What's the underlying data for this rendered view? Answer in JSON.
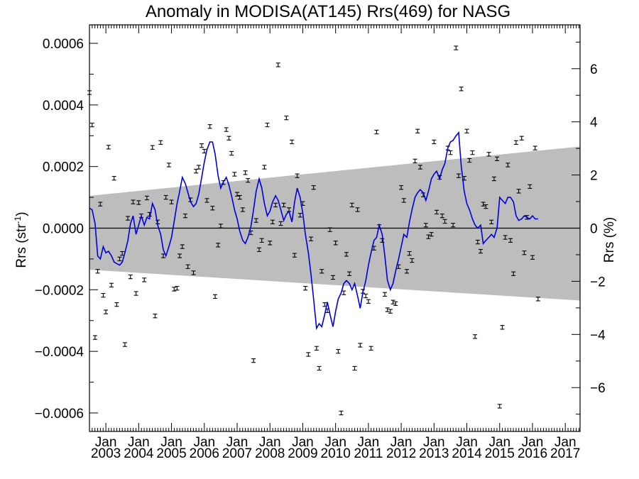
{
  "chart_data": {
    "type": "line",
    "title": "Anomaly in MODISA(AT145) Rrs(469) for NASG",
    "ylabel_left_main": "Rrs (str",
    "ylabel_left_sup": "-1",
    "ylabel_left_end": ")",
    "ylabel_right": "Rrs (%)",
    "xlim": [
      2002.5,
      2017.45
    ],
    "ylim_left": [
      -0.00066,
      0.00066
    ],
    "ylim_right": [
      -7.65,
      7.65
    ],
    "x_ticks": [
      {
        "x": 2003.0,
        "month": "Jan",
        "year": "2003"
      },
      {
        "x": 2004.0,
        "month": "Jan",
        "year": "2004"
      },
      {
        "x": 2005.0,
        "month": "Jan",
        "year": "2005"
      },
      {
        "x": 2006.0,
        "month": "Jan",
        "year": "2006"
      },
      {
        "x": 2007.0,
        "month": "Jan",
        "year": "2007"
      },
      {
        "x": 2008.0,
        "month": "Jan",
        "year": "2008"
      },
      {
        "x": 2009.0,
        "month": "Jan",
        "year": "2009"
      },
      {
        "x": 2010.0,
        "month": "Jan",
        "year": "2010"
      },
      {
        "x": 2011.0,
        "month": "Jan",
        "year": "2011"
      },
      {
        "x": 2012.0,
        "month": "Jan",
        "year": "2012"
      },
      {
        "x": 2013.0,
        "month": "Jan",
        "year": "2013"
      },
      {
        "x": 2014.0,
        "month": "Jan",
        "year": "2014"
      },
      {
        "x": 2015.0,
        "month": "Jan",
        "year": "2015"
      },
      {
        "x": 2016.0,
        "month": "Jan",
        "year": "2016"
      },
      {
        "x": 2017.0,
        "month": "Jan",
        "year": "2017"
      }
    ],
    "y_ticks_left": [
      {
        "value": 0.0006,
        "label": "0.0006"
      },
      {
        "value": 0.0004,
        "label": "0.0004"
      },
      {
        "value": 0.0002,
        "label": "0.0002"
      },
      {
        "value": 0.0,
        "label": "0.0000"
      },
      {
        "value": -0.0002,
        "label": "−0.0002"
      },
      {
        "value": -0.0004,
        "label": "−0.0004"
      },
      {
        "value": -0.0006,
        "label": "−0.0006"
      }
    ],
    "y_ticks_right": [
      {
        "value": 6,
        "label": "6"
      },
      {
        "value": 4,
        "label": "4"
      },
      {
        "value": 2,
        "label": "2"
      },
      {
        "value": 0,
        "label": "0"
      },
      {
        "value": -2,
        "label": "−2"
      },
      {
        "value": -4,
        "label": "−4"
      },
      {
        "value": -6,
        "label": "−6"
      }
    ],
    "band": {
      "x": [
        2002.5,
        2017.45
      ],
      "upper": [
        0.000105,
        0.000265
      ],
      "lower": [
        -0.000135,
        -0.000235
      ]
    },
    "zero_line": 0,
    "points": [
      [
        2002.5,
        0.00044
      ],
      [
        2002.58,
        0.000335
      ],
      [
        2002.67,
        -0.000355
      ],
      [
        2002.75,
        -0.00014
      ],
      [
        2002.83,
        7.8e-05
      ],
      [
        2002.92,
        -0.000218
      ],
      [
        2003.0,
        -0.000272
      ],
      [
        2003.08,
        0.000263
      ],
      [
        2003.17,
        -0.000185
      ],
      [
        2003.25,
        0.000162
      ],
      [
        2003.33,
        -0.000248
      ],
      [
        2003.42,
        -0.0001
      ],
      [
        2003.5,
        -8.2e-05
      ],
      [
        2003.58,
        -0.000378
      ],
      [
        2003.67,
        3.2e-05
      ],
      [
        2003.75,
        -0.000158
      ],
      [
        2003.83,
        8.5e-05
      ],
      [
        2003.92,
        -0.000212
      ],
      [
        2004.0,
        8.3e-05
      ],
      [
        2004.08,
        4e-05
      ],
      [
        2004.17,
        -0.000168
      ],
      [
        2004.25,
        9.8e-05
      ],
      [
        2004.33,
        4.5e-05
      ],
      [
        2004.42,
        0.000262
      ],
      [
        2004.5,
        -0.000285
      ],
      [
        2004.58,
        2e-05
      ],
      [
        2004.67,
        0.000278
      ],
      [
        2004.75,
        -9e-05
      ],
      [
        2004.83,
        0.0001
      ],
      [
        2004.92,
        0.000205
      ],
      [
        2005.0,
        8.5e-05
      ],
      [
        2005.08,
        -0.000198
      ],
      [
        2005.17,
        -0.000195
      ],
      [
        2005.25,
        -9e-05
      ],
      [
        2005.33,
        -6e-05
      ],
      [
        2005.42,
        4e-05
      ],
      [
        2005.5,
        -0.000125
      ],
      [
        2005.58,
        9.2e-05
      ],
      [
        2005.67,
        -0.000145
      ],
      [
        2005.75,
        0.000185
      ],
      [
        2005.83,
        0.000198
      ],
      [
        2005.92,
        0.000268
      ],
      [
        2006.0,
        0.00025
      ],
      [
        2006.08,
        9e-05
      ],
      [
        2006.17,
        0.00033
      ],
      [
        2006.25,
        6.5e-05
      ],
      [
        2006.33,
        -0.000222
      ],
      [
        2006.42,
        -5.5e-05
      ],
      [
        2006.5,
        7e-06
      ],
      [
        2006.58,
        0.000148
      ],
      [
        2006.67,
        0.00032
      ],
      [
        2006.75,
        0.000292
      ],
      [
        2006.83,
        0.000243
      ],
      [
        2006.92,
        0.000175
      ],
      [
        2007.0,
        0.00011
      ],
      [
        2007.08,
        0.0001
      ],
      [
        2007.17,
        6e-05
      ],
      [
        2007.25,
        0.00018
      ],
      [
        2007.33,
        0.000155
      ],
      [
        2007.42,
        -1.5e-05
      ],
      [
        2007.5,
        -0.00043
      ],
      [
        2007.58,
        2.5e-05
      ],
      [
        2007.67,
        -7e-05
      ],
      [
        2007.75,
        -4e-05
      ],
      [
        2007.83,
        0.000198
      ],
      [
        2007.92,
        0.000335
      ],
      [
        2008.0,
        -4.8e-05
      ],
      [
        2008.08,
        2e-05
      ],
      [
        2008.17,
        7.5e-05
      ],
      [
        2008.25,
        0.00053
      ],
      [
        2008.33,
        1.5e-05
      ],
      [
        2008.42,
        7.5e-05
      ],
      [
        2008.5,
        0.000358
      ],
      [
        2008.58,
        6e-05
      ],
      [
        2008.67,
        0.00028
      ],
      [
        2008.75,
        -8.8e-05
      ],
      [
        2008.83,
        0.00017
      ],
      [
        2008.92,
        4.2e-05
      ],
      [
        2009.0,
        8e-05
      ],
      [
        2009.08,
        -0.000195
      ],
      [
        2009.17,
        -0.00041
      ],
      [
        2009.25,
        -3.5e-05
      ],
      [
        2009.33,
        0.000132
      ],
      [
        2009.42,
        -0.00039
      ],
      [
        2009.5,
        -0.000455
      ],
      [
        2009.58,
        -0.00014
      ],
      [
        2009.67,
        -0.000248
      ],
      [
        2009.75,
        -0.000268
      ],
      [
        2009.83,
        -5e-06
      ],
      [
        2009.92,
        -0.00016
      ],
      [
        2010.0,
        -4.8e-05
      ],
      [
        2010.08,
        -0.0004
      ],
      [
        2010.17,
        -0.0006
      ],
      [
        2010.25,
        -0.00021
      ],
      [
        2010.33,
        -8.5e-05
      ],
      [
        2010.42,
        -0.000148
      ],
      [
        2010.5,
        7.5e-05
      ],
      [
        2010.58,
        -0.000455
      ],
      [
        2010.67,
        6e-05
      ],
      [
        2010.75,
        -0.00038
      ],
      [
        2010.83,
        -0.000205
      ],
      [
        2010.92,
        -0.00022
      ],
      [
        2011.0,
        -0.000238
      ],
      [
        2011.08,
        -0.00039
      ],
      [
        2011.17,
        -6.5e-05
      ],
      [
        2011.25,
        0.000312
      ],
      [
        2011.33,
        5e-06
      ],
      [
        2011.42,
        -4e-05
      ],
      [
        2011.5,
        -0.000215
      ],
      [
        2011.58,
        -0.000265
      ],
      [
        2011.67,
        -0.00027
      ],
      [
        2011.75,
        -0.00024
      ],
      [
        2011.83,
        -0.000245
      ],
      [
        2011.92,
        -0.000125
      ],
      [
        2012.0,
        0.000132
      ],
      [
        2012.08,
        9e-05
      ],
      [
        2012.17,
        -0.00014
      ],
      [
        2012.25,
        -8.2e-05
      ],
      [
        2012.33,
        -0.000105
      ],
      [
        2012.42,
        0.000218
      ],
      [
        2012.5,
        0.000315
      ],
      [
        2012.58,
        0.000198
      ],
      [
        2012.67,
        0.000108
      ],
      [
        2012.75,
        1e-05
      ],
      [
        2012.83,
        -2.8e-05
      ],
      [
        2012.92,
        -2e-05
      ],
      [
        2013.0,
        0.00028
      ],
      [
        2013.08,
        5.2e-05
      ],
      [
        2013.17,
        0.000165
      ],
      [
        2013.25,
        4e-05
      ],
      [
        2013.33,
        2.2e-05
      ],
      [
        2013.42,
        0.00026
      ],
      [
        2013.5,
        0.000245
      ],
      [
        2013.58,
        1e-05
      ],
      [
        2013.67,
        0.000585
      ],
      [
        2013.75,
        0.00017
      ],
      [
        2013.83,
        0.000452
      ],
      [
        2013.92,
        0.000162
      ],
      [
        2014.0,
        0.000315
      ],
      [
        2014.08,
        0.00022
      ],
      [
        2014.17,
        0.000245
      ],
      [
        2014.25,
        -0.000352
      ],
      [
        2014.33,
        -4.5e-05
      ],
      [
        2014.42,
        -7.5e-05
      ],
      [
        2014.5,
        7.8e-05
      ],
      [
        2014.58,
        7e-05
      ],
      [
        2014.67,
        0.00024
      ],
      [
        2014.75,
        2e-05
      ],
      [
        2014.83,
        0.00016
      ],
      [
        2014.92,
        0.000225
      ],
      [
        2015.0,
        -0.000578
      ],
      [
        2015.08,
        -0.000322
      ],
      [
        2015.17,
        -3e-05
      ],
      [
        2015.25,
        0.000205
      ],
      [
        2015.33,
        -4e-05
      ],
      [
        2015.42,
        -0.000148
      ],
      [
        2015.5,
        0.000278
      ],
      [
        2015.58,
        0.00012
      ],
      [
        2015.67,
        0.000292
      ],
      [
        2015.75,
        -8e-05
      ],
      [
        2015.83,
        3.5e-05
      ],
      [
        2015.92,
        0.000135
      ],
      [
        2016.0,
        -9.5e-05
      ],
      [
        2016.08,
        0.00026
      ],
      [
        2016.17,
        -0.00023
      ]
    ],
    "line": [
      [
        2002.5,
        6.5e-05
      ],
      [
        2002.58,
        6e-05
      ],
      [
        2002.67,
        1.5e-05
      ],
      [
        2002.75,
        -9e-05
      ],
      [
        2002.83,
        -0.0001
      ],
      [
        2002.92,
        -6e-05
      ],
      [
        2003.0,
        -8e-05
      ],
      [
        2003.08,
        -7.5e-05
      ],
      [
        2003.17,
        -9e-05
      ],
      [
        2003.25,
        -0.00011
      ],
      [
        2003.33,
        -0.000115
      ],
      [
        2003.42,
        -0.00012
      ],
      [
        2003.5,
        -0.00011
      ],
      [
        2003.58,
        -8e-05
      ],
      [
        2003.67,
        -4e-05
      ],
      [
        2003.75,
        1.5e-05
      ],
      [
        2003.83,
        4e-05
      ],
      [
        2003.92,
        -2e-05
      ],
      [
        2004.0,
        1e-05
      ],
      [
        2004.08,
        4e-05
      ],
      [
        2004.17,
        1e-05
      ],
      [
        2004.25,
        3.5e-05
      ],
      [
        2004.33,
        3e-05
      ],
      [
        2004.42,
        8e-05
      ],
      [
        2004.5,
        6e-05
      ],
      [
        2004.58,
        1e-05
      ],
      [
        2004.67,
        -2e-05
      ],
      [
        2004.75,
        -7e-05
      ],
      [
        2004.83,
        -9e-05
      ],
      [
        2004.92,
        -6e-05
      ],
      [
        2005.0,
        -3e-05
      ],
      [
        2005.08,
        2e-05
      ],
      [
        2005.17,
        8e-05
      ],
      [
        2005.25,
        0.00012
      ],
      [
        2005.33,
        0.000165
      ],
      [
        2005.42,
        0.000145
      ],
      [
        2005.5,
        0.000115
      ],
      [
        2005.58,
        8.5e-05
      ],
      [
        2005.67,
        7e-05
      ],
      [
        2005.75,
        8e-05
      ],
      [
        2005.83,
        0.00011
      ],
      [
        2005.92,
        0.000165
      ],
      [
        2006.0,
        0.000215
      ],
      [
        2006.08,
        0.000255
      ],
      [
        2006.17,
        0.00028
      ],
      [
        2006.25,
        0.00028
      ],
      [
        2006.33,
        0.00024
      ],
      [
        2006.42,
        0.00017
      ],
      [
        2006.5,
        0.00013
      ],
      [
        2006.58,
        0.00015
      ],
      [
        2006.67,
        0.000165
      ],
      [
        2006.75,
        0.00014
      ],
      [
        2006.83,
        0.000105
      ],
      [
        2006.92,
        6e-05
      ],
      [
        2007.0,
        3e-05
      ],
      [
        2007.08,
        -1e-05
      ],
      [
        2007.17,
        -4e-05
      ],
      [
        2007.25,
        -5e-05
      ],
      [
        2007.33,
        -3e-05
      ],
      [
        2007.42,
        5e-06
      ],
      [
        2007.5,
        6e-05
      ],
      [
        2007.58,
        0.00012
      ],
      [
        2007.67,
        0.00016
      ],
      [
        2007.75,
        0.00013
      ],
      [
        2007.83,
        8e-05
      ],
      [
        2007.92,
        4e-05
      ],
      [
        2008.0,
        5.5e-05
      ],
      [
        2008.08,
        8.5e-05
      ],
      [
        2008.17,
        0.000105
      ],
      [
        2008.25,
        9e-05
      ],
      [
        2008.33,
        6e-05
      ],
      [
        2008.42,
        2.5e-05
      ],
      [
        2008.5,
        4.5e-05
      ],
      [
        2008.58,
        5.5e-05
      ],
      [
        2008.67,
        2e-05
      ],
      [
        2008.75,
        8.5e-05
      ],
      [
        2008.83,
        0.00013
      ],
      [
        2008.92,
        0.0001
      ],
      [
        2009.0,
        5e-05
      ],
      [
        2009.08,
        -2e-05
      ],
      [
        2009.17,
        -8e-05
      ],
      [
        2009.25,
        -0.00015
      ],
      [
        2009.33,
        -0.00023
      ],
      [
        2009.42,
        -0.000325
      ],
      [
        2009.5,
        -0.00031
      ],
      [
        2009.58,
        -0.00032
      ],
      [
        2009.67,
        -0.00028
      ],
      [
        2009.75,
        -0.00024
      ],
      [
        2009.83,
        -0.00028
      ],
      [
        2009.92,
        -0.00032
      ],
      [
        2010.0,
        -0.00027
      ],
      [
        2010.08,
        -0.00023
      ],
      [
        2010.17,
        -0.00021
      ],
      [
        2010.25,
        -0.00018
      ],
      [
        2010.33,
        -0.00017
      ],
      [
        2010.42,
        -0.00018
      ],
      [
        2010.5,
        -0.0002
      ],
      [
        2010.58,
        -0.00018
      ],
      [
        2010.67,
        -0.00022
      ],
      [
        2010.75,
        -0.00026
      ],
      [
        2010.83,
        -0.00021
      ],
      [
        2010.92,
        -0.00017
      ],
      [
        2011.0,
        -0.00012
      ],
      [
        2011.08,
        -8e-05
      ],
      [
        2011.17,
        -4e-05
      ],
      [
        2011.25,
        -3e-05
      ],
      [
        2011.33,
        1e-05
      ],
      [
        2011.42,
        -2e-05
      ],
      [
        2011.5,
        -9e-05
      ],
      [
        2011.58,
        -0.00017
      ],
      [
        2011.67,
        -0.0002
      ],
      [
        2011.75,
        -0.00018
      ],
      [
        2011.83,
        -0.00014
      ],
      [
        2011.92,
        -0.0001
      ],
      [
        2012.0,
        -6e-05
      ],
      [
        2012.08,
        -2e-05
      ],
      [
        2012.17,
        -3e-05
      ],
      [
        2012.25,
        2e-05
      ],
      [
        2012.33,
        6e-05
      ],
      [
        2012.42,
        0.0001
      ],
      [
        2012.5,
        0.000115
      ],
      [
        2012.58,
        0.000125
      ],
      [
        2012.67,
        0.000115
      ],
      [
        2012.75,
        9e-05
      ],
      [
        2012.83,
        0.00012
      ],
      [
        2012.92,
        0.00016
      ],
      [
        2013.0,
        0.000175
      ],
      [
        2013.08,
        0.000185
      ],
      [
        2013.17,
        0.00016
      ],
      [
        2013.25,
        0.00019
      ],
      [
        2013.33,
        0.00021
      ],
      [
        2013.42,
        0.00026
      ],
      [
        2013.5,
        0.00028
      ],
      [
        2013.58,
        0.000285
      ],
      [
        2013.67,
        0.0003
      ],
      [
        2013.75,
        0.00031
      ],
      [
        2013.83,
        0.0002
      ],
      [
        2013.92,
        0.00012
      ],
      [
        2014.0,
        8e-05
      ],
      [
        2014.08,
        6e-05
      ],
      [
        2014.17,
        3e-05
      ],
      [
        2014.25,
        1e-05
      ],
      [
        2014.33,
        0.0
      ],
      [
        2014.42,
        1e-05
      ],
      [
        2014.5,
        -5e-05
      ],
      [
        2014.58,
        -4e-05
      ],
      [
        2014.67,
        -3e-05
      ],
      [
        2014.75,
        -2e-05
      ],
      [
        2014.83,
        -3e-05
      ],
      [
        2014.92,
        0.0
      ],
      [
        2015.0,
        0.0001
      ],
      [
        2015.08,
        9e-05
      ],
      [
        2015.17,
        8e-05
      ],
      [
        2015.25,
        0.0001
      ],
      [
        2015.33,
        0.0001
      ],
      [
        2015.42,
        8.5e-05
      ],
      [
        2015.5,
        4e-05
      ],
      [
        2015.58,
        2.5e-05
      ],
      [
        2015.67,
        3e-05
      ],
      [
        2015.75,
        4e-05
      ],
      [
        2015.83,
        3.5e-05
      ],
      [
        2015.92,
        3e-05
      ],
      [
        2016.0,
        4e-05
      ],
      [
        2016.08,
        3e-05
      ],
      [
        2016.17,
        3e-05
      ]
    ],
    "colors": {
      "line": "#0000dd",
      "band": "#bdbdbd",
      "points": "#000000",
      "axes": "#000000"
    },
    "error_bar_halfwidth": 6e-06
  }
}
